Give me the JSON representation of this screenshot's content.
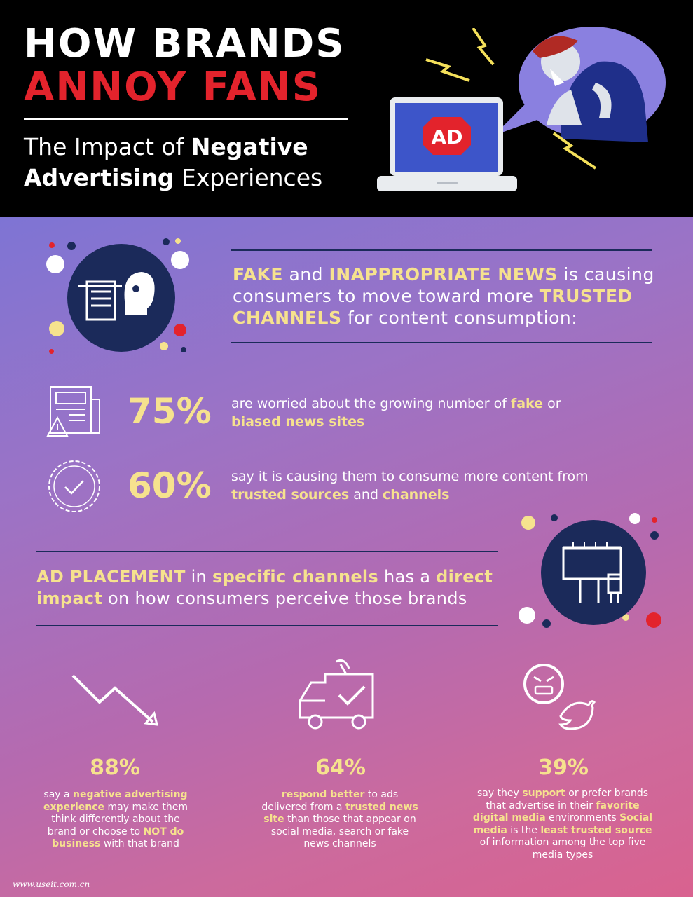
{
  "header": {
    "title_line1": "HOW BRANDS",
    "title_line2": "ANNOY FANS",
    "subtitle_pre": "The Impact of ",
    "subtitle_bold1": "Negative",
    "subtitle_bold2": "Advertising",
    "subtitle_post": " Experiences",
    "ad_badge": "AD"
  },
  "section1": {
    "h_fake": "FAKE",
    "h_and": " and ",
    "h_inapp": "INAPPROPRIATE NEWS",
    "h_mid": " is causing consumers to move toward more ",
    "h_trusted": "TRUSTED CHANNELS",
    "h_end": " for content consumption:"
  },
  "stats": [
    {
      "pct": "75%",
      "t1": "are worried about the growing number of ",
      "b1": "fake",
      "t2": " or",
      "b2": "biased news sites",
      "t3": ""
    },
    {
      "pct": "60%",
      "t1": "say it is causing them to consume more content from",
      "b1": "trusted sources",
      "t2": " and ",
      "b2": "channels",
      "t3": ""
    }
  ],
  "section2": {
    "b1": "AD PLACEMENT",
    "t1": " in ",
    "b2": "specific channels",
    "t2": " has a ",
    "b3": "direct impact",
    "t3": " on how consumers perceive those brands"
  },
  "columns": [
    {
      "pct": "88%",
      "parts": [
        [
          "say a ",
          false
        ],
        [
          "negative advertising experience",
          true
        ],
        [
          " may make them think differently about the brand or choose to ",
          false
        ],
        [
          "NOT do business",
          true
        ],
        [
          " with that brand",
          false
        ]
      ]
    },
    {
      "pct": "64%",
      "parts": [
        [
          "respond better",
          true
        ],
        [
          " to ads delivered from a ",
          false
        ],
        [
          "trusted news site",
          true
        ],
        [
          " than those that appear on social media, search or fake news channels",
          false
        ]
      ]
    },
    {
      "pct": "39%",
      "parts": [
        [
          "say they ",
          false
        ],
        [
          "support",
          true
        ],
        [
          " or prefer brands that advertise in their ",
          false
        ],
        [
          "favorite digital media",
          true
        ],
        [
          " environments ",
          false
        ],
        [
          "Social media",
          true
        ],
        [
          " is the ",
          false
        ],
        [
          "least trusted source",
          true
        ],
        [
          " of information among the top five media types",
          false
        ]
      ]
    }
  ],
  "watermark": "www.useit.com.cn",
  "colors": {
    "accent_yellow": "#f6e28e",
    "title_red": "#e3232c",
    "navy": "#1b2a5a"
  }
}
